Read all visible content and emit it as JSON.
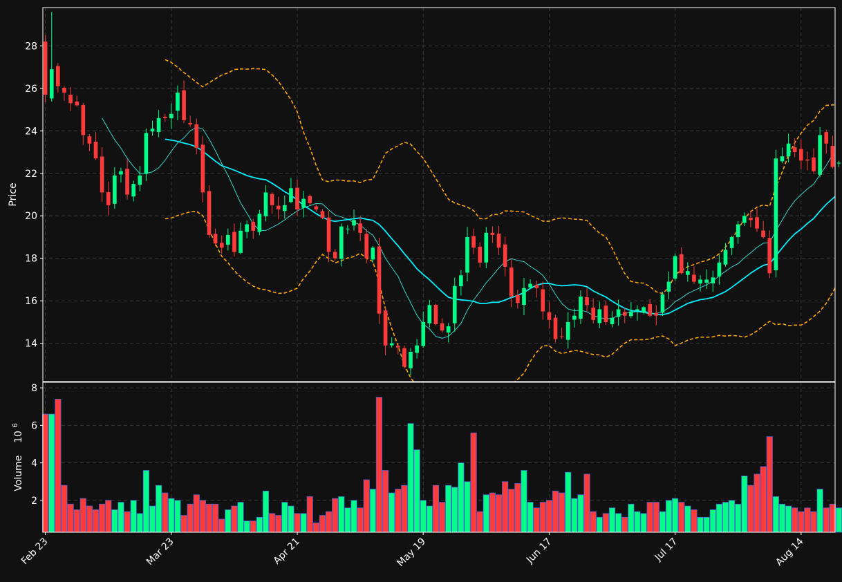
{
  "theme": {
    "background": "#111111",
    "panel_border": "#ffffff",
    "grid": "#3a3a3a",
    "text": "#ffffff",
    "up": "#00ff88",
    "down": "#ff3b3b",
    "volume_edge": "#4a5fd0",
    "ma_short": "#33d6cc",
    "ma_long": "#00f0ff",
    "bollinger": "#ffa500"
  },
  "chart_data": {
    "type": "candlestick",
    "title": "",
    "price_panel": {
      "ylabel": "Price",
      "ylim": [
        12.2,
        29.8
      ],
      "yticks": [
        14,
        16,
        18,
        20,
        22,
        24,
        26,
        28
      ]
    },
    "volume_panel": {
      "ylabel_main": "Volume",
      "ylabel_multiplier": "10",
      "ylabel_exponent": "6",
      "ylim": [
        0.3,
        8.3
      ],
      "yticks": [
        2,
        4,
        6,
        8
      ]
    },
    "x_axis": {
      "tick_labels": [
        "Feb 23",
        "Mar 23",
        "Apr 21",
        "May 19",
        "Jun 17",
        "Jul 17",
        "Aug 14"
      ],
      "tick_index": [
        0,
        20,
        40,
        60,
        80,
        100,
        120
      ],
      "index_range": [
        -0.4,
        125.4
      ]
    },
    "closes": [
      25.7,
      26.9,
      26.1,
      25.8,
      25.3,
      25.2,
      23.8,
      23.4,
      22.7,
      21.1,
      20.5,
      21.9,
      22.1,
      21.0,
      21.5,
      21.9,
      23.9,
      24.1,
      24.6,
      24.6,
      24.8,
      25.8,
      24.5,
      24.3,
      23.2,
      21.1,
      19.1,
      18.7,
      18.5,
      19.1,
      18.3,
      19.3,
      19.6,
      19.3,
      20.1,
      21.1,
      20.5,
      20.3,
      20.5,
      21.3,
      20.3,
      20.8,
      20.6,
      20.3,
      19.9,
      18.3,
      18.0,
      19.5,
      19.4,
      19.8,
      19.2,
      18.0,
      18.5,
      15.4,
      13.9,
      14.0,
      13.8,
      12.9,
      13.6,
      13.9,
      15.0,
      15.8,
      14.9,
      14.6,
      14.8,
      16.7,
      17.2,
      19.0,
      18.5,
      17.8,
      19.2,
      19.1,
      18.5,
      17.6,
      16.2,
      15.9,
      16.6,
      16.8,
      16.6,
      15.5,
      15.1,
      14.2,
      14.3,
      15.0,
      15.3,
      16.2,
      15.8,
      15.1,
      15.6,
      15.0,
      15.2,
      15.6,
      15.3,
      15.5,
      15.6,
      15.7,
      15.3,
      15.3,
      16.3,
      16.9,
      18.1,
      17.3,
      17.4,
      16.9,
      17.0,
      17.0,
      17.1,
      17.8,
      18.4,
      19.0,
      19.6,
      20.0,
      19.8,
      19.4,
      19.0,
      17.3,
      22.7,
      22.8,
      23.4,
      23.0,
      22.6,
      22.6,
      22.1,
      23.8,
      23.4,
      22.3,
      22.5
    ],
    "volume": [
      6.6,
      6.6,
      7.4,
      2.8,
      1.8,
      1.5,
      2.1,
      1.7,
      1.5,
      1.8,
      2.0,
      1.5,
      1.9,
      1.4,
      2.0,
      1.3,
      3.6,
      1.7,
      2.8,
      2.4,
      2.1,
      2.0,
      1.2,
      1.8,
      2.3,
      2.0,
      1.8,
      1.8,
      1.0,
      1.5,
      1.7,
      1.9,
      0.9,
      0.9,
      1.1,
      2.5,
      1.3,
      1.2,
      1.9,
      1.7,
      1.3,
      1.3,
      2.2,
      0.8,
      1.2,
      1.4,
      2.1,
      2.2,
      1.6,
      2.0,
      1.6,
      3.1,
      2.6,
      7.5,
      3.6,
      2.4,
      2.6,
      2.8,
      6.1,
      4.7,
      2.0,
      1.7,
      2.8,
      1.9,
      2.8,
      2.7,
      4.0,
      3.0,
      5.6,
      1.4,
      2.3,
      2.4,
      2.3,
      3.0,
      2.6,
      2.9,
      3.6,
      1.9,
      1.6,
      1.9,
      2.0,
      2.5,
      2.4,
      3.5,
      2.1,
      2.3,
      3.4,
      1.4,
      1.1,
      1.3,
      1.6,
      1.3,
      1.1,
      1.8,
      1.4,
      1.3,
      1.9,
      1.9,
      1.4,
      2.0,
      2.1,
      1.9,
      1.7,
      1.5,
      1.1,
      1.1,
      1.5,
      1.8,
      1.9,
      2.0,
      1.8,
      3.3,
      2.8,
      3.4,
      3.8,
      5.4,
      2.2,
      1.8,
      1.7,
      1.6,
      1.4,
      1.6,
      1.4,
      2.6,
      1.6,
      1.8,
      1.6
    ],
    "series": [
      {
        "name": "",
        "kind": "moving_average",
        "window": 5
      },
      {
        "name": "",
        "kind": "moving_average",
        "window": 20
      },
      {
        "name": "",
        "kind": "bollinger_bands",
        "window": 20,
        "stdev": 2
      }
    ]
  }
}
